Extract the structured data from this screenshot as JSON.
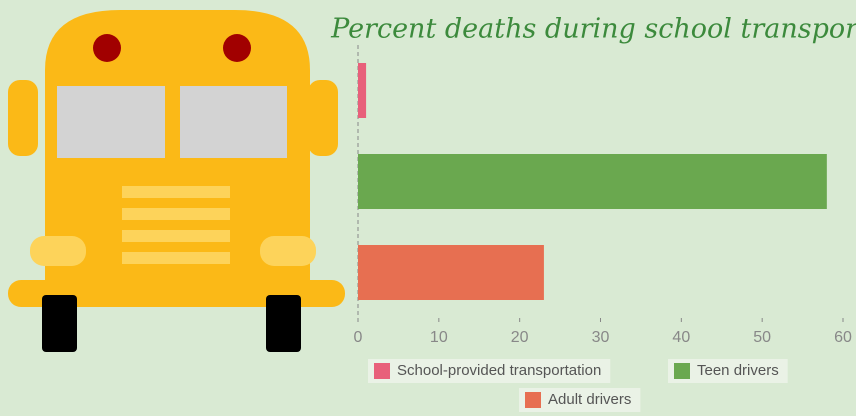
{
  "chart_data": {
    "type": "bar",
    "orientation": "horizontal",
    "title": "Percent deaths during school transport",
    "series": [
      {
        "name": "School-provided transportation",
        "color": "#e8607a",
        "values": [
          1
        ]
      },
      {
        "name": "Teen drivers",
        "color": "#6aa84f",
        "values": [
          58
        ]
      },
      {
        "name": "Adult drivers",
        "color": "#e76f51",
        "values": [
          23
        ]
      }
    ],
    "xlim": [
      0,
      60
    ],
    "xticks": [
      0,
      10,
      20,
      30,
      40,
      50,
      60
    ],
    "grid": false
  }
}
